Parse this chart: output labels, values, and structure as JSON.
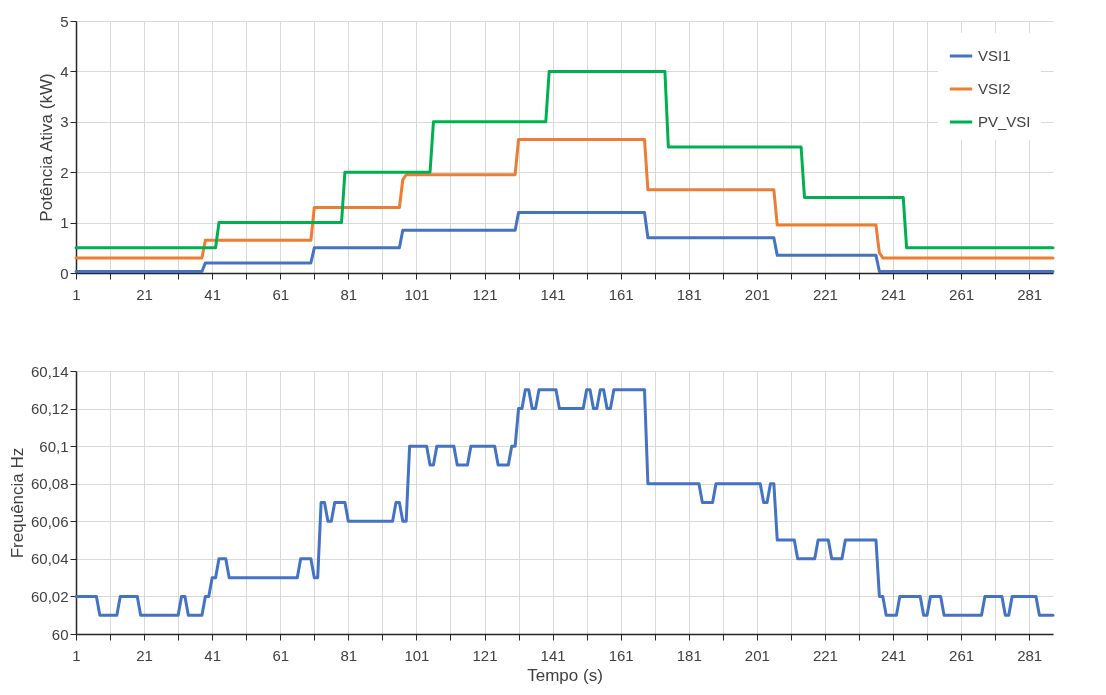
{
  "chart_data": [
    {
      "type": "line",
      "ylabel": "Potência Ativa (kW)",
      "xlim": [
        1,
        288
      ],
      "ylim": [
        0,
        5
      ],
      "yticks": [
        0,
        1,
        2,
        3,
        4,
        5
      ],
      "xticks": [
        1,
        {
          "value": 11,
          "label": null
        },
        21,
        {
          "value": 31,
          "label": null
        },
        41,
        {
          "value": 51,
          "label": null
        },
        61,
        {
          "value": 71,
          "label": null
        },
        81,
        {
          "value": 91,
          "label": null
        },
        101,
        {
          "value": 111,
          "label": null
        },
        121,
        {
          "value": 131,
          "label": null
        },
        141,
        {
          "value": 151,
          "label": null
        },
        161,
        {
          "value": 171,
          "label": null
        },
        181,
        {
          "value": 191,
          "label": null
        },
        201,
        {
          "value": 211,
          "label": null
        },
        221,
        {
          "value": 231,
          "label": null
        },
        241,
        {
          "value": 251,
          "label": null
        },
        261,
        {
          "value": 271,
          "label": null
        },
        281
      ],
      "grid": true,
      "legend": "top right",
      "line_style": "solid",
      "marker": "none",
      "series": [
        {
          "name": "VSI1",
          "color": "#4472c4",
          "x": [
            1,
            38,
            39,
            70,
            71,
            96,
            97,
            130,
            131,
            168,
            169,
            206,
            207,
            236,
            237,
            288
          ],
          "values": [
            0.03,
            0.03,
            0.2,
            0.2,
            0.5,
            0.5,
            0.85,
            0.85,
            1.2,
            1.2,
            0.7,
            0.7,
            0.35,
            0.35,
            0.03,
            0.03
          ]
        },
        {
          "name": "VSI2",
          "color": "#ed7d31",
          "x": [
            1,
            38,
            39,
            70,
            71,
            96,
            97,
            98,
            130,
            131,
            168,
            169,
            206,
            207,
            236,
            237,
            238,
            288
          ],
          "values": [
            0.3,
            0.3,
            0.65,
            0.65,
            1.3,
            1.3,
            1.85,
            1.95,
            1.95,
            2.65,
            2.65,
            1.65,
            1.65,
            0.95,
            0.95,
            0.4,
            0.3,
            0.3
          ]
        },
        {
          "name": "PV_VSI",
          "color": "#00b050",
          "x": [
            1,
            42,
            43,
            79,
            80,
            105,
            106,
            139,
            140,
            174,
            175,
            214,
            215,
            244,
            245,
            288
          ],
          "values": [
            0.5,
            0.5,
            1,
            1,
            2,
            2,
            3,
            3,
            4,
            4,
            2.5,
            2.5,
            1.5,
            1.5,
            0.5,
            0.5
          ]
        }
      ]
    },
    {
      "type": "line",
      "xlabel": "Tempo (s)",
      "ylabel": "Frequência Hz",
      "xlim": [
        1,
        288
      ],
      "ylim": [
        60,
        60.14
      ],
      "yticks": [
        60,
        {
          "value": 60.02,
          "label": "60,02"
        },
        {
          "value": 60.04,
          "label": "60,04"
        },
        {
          "value": 60.06,
          "label": "60,06"
        },
        {
          "value": 60.08,
          "label": "60,08"
        },
        {
          "value": 60.1,
          "label": "60,1"
        },
        {
          "value": 60.12,
          "label": "60,12"
        },
        {
          "value": 60.14,
          "label": "60,14"
        }
      ],
      "xticks": [
        1,
        {
          "value": 11,
          "label": null
        },
        21,
        {
          "value": 31,
          "label": null
        },
        41,
        {
          "value": 51,
          "label": null
        },
        61,
        {
          "value": 71,
          "label": null
        },
        81,
        {
          "value": 91,
          "label": null
        },
        101,
        {
          "value": 111,
          "label": null
        },
        121,
        {
          "value": 131,
          "label": null
        },
        141,
        {
          "value": 151,
          "label": null
        },
        161,
        {
          "value": 171,
          "label": null
        },
        181,
        {
          "value": 191,
          "label": null
        },
        201,
        {
          "value": 211,
          "label": null
        },
        221,
        {
          "value": 231,
          "label": null
        },
        241,
        {
          "value": 251,
          "label": null
        },
        261,
        {
          "value": 271,
          "label": null
        },
        281
      ],
      "grid": true,
      "line_style": "solid",
      "marker": "none",
      "series": [
        {
          "color": "#4472c4",
          "x": [
            1,
            7,
            8,
            13,
            14,
            19,
            20,
            31,
            32,
            33,
            34,
            38,
            39,
            40,
            41,
            42,
            43,
            45,
            46,
            66,
            67,
            70,
            71,
            72,
            73,
            74,
            75,
            76,
            77,
            80,
            81,
            94,
            95,
            96,
            97,
            98,
            99,
            104,
            105,
            106,
            107,
            112,
            113,
            116,
            117,
            124,
            125,
            128,
            129,
            130,
            131,
            132,
            133,
            134,
            135,
            136,
            137,
            142,
            143,
            150,
            151,
            152,
            153,
            154,
            155,
            156,
            157,
            158,
            159,
            168,
            169,
            184,
            185,
            188,
            189,
            202,
            203,
            204,
            205,
            206,
            207,
            212,
            213,
            218,
            219,
            222,
            223,
            226,
            227,
            236,
            237,
            238,
            239,
            242,
            243,
            249,
            250,
            251,
            252,
            255,
            256,
            267,
            268,
            273,
            274,
            275,
            276,
            283,
            284,
            288
          ],
          "values": [
            60.02,
            60.02,
            60.01,
            60.01,
            60.02,
            60.02,
            60.01,
            60.01,
            60.02,
            60.02,
            60.01,
            60.01,
            60.02,
            60.02,
            60.03,
            60.03,
            60.04,
            60.04,
            60.03,
            60.03,
            60.04,
            60.04,
            60.03,
            60.03,
            60.07,
            60.07,
            60.06,
            60.06,
            60.07,
            60.07,
            60.06,
            60.06,
            60.07,
            60.07,
            60.06,
            60.06,
            60.1,
            60.1,
            60.09,
            60.09,
            60.1,
            60.1,
            60.09,
            60.09,
            60.1,
            60.1,
            60.09,
            60.09,
            60.1,
            60.1,
            60.12,
            60.12,
            60.13,
            60.13,
            60.12,
            60.12,
            60.13,
            60.13,
            60.12,
            60.12,
            60.13,
            60.13,
            60.12,
            60.12,
            60.13,
            60.13,
            60.12,
            60.12,
            60.13,
            60.13,
            60.08,
            60.08,
            60.07,
            60.07,
            60.08,
            60.08,
            60.07,
            60.07,
            60.08,
            60.08,
            60.05,
            60.05,
            60.04,
            60.04,
            60.05,
            60.05,
            60.04,
            60.04,
            60.05,
            60.05,
            60.02,
            60.02,
            60.01,
            60.01,
            60.02,
            60.02,
            60.01,
            60.01,
            60.02,
            60.02,
            60.01,
            60.01,
            60.02,
            60.02,
            60.01,
            60.01,
            60.02,
            60.02,
            60.01,
            60.01
          ]
        }
      ]
    }
  ]
}
